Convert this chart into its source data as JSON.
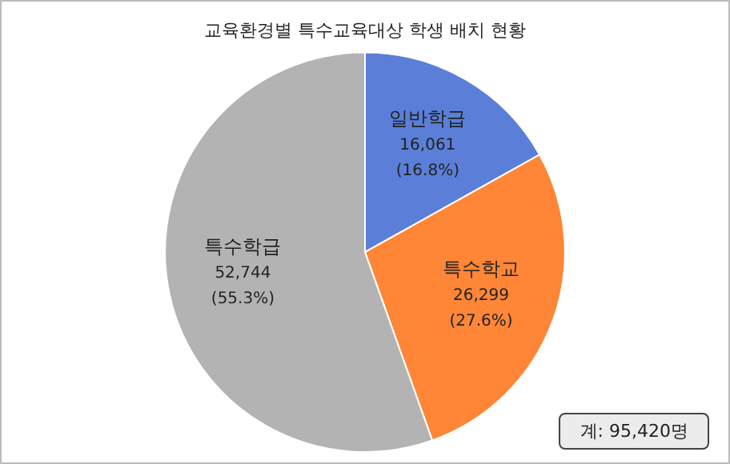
{
  "chart_data": {
    "type": "pie",
    "title": "교육환경별 특수교육대상 학생 배치 현황",
    "categories": [
      "일반학급",
      "특수학교",
      "특수학급"
    ],
    "values": [
      16061,
      26299,
      52744
    ],
    "colors": [
      "#5b7fd8",
      "#fe8636",
      "#b3b3b3"
    ],
    "value_labels": [
      "16,061 (16.8%)",
      "26,299 (27.6%)",
      "52,744 (55.3%)"
    ],
    "annotations": [
      "계: 95,420명"
    ],
    "legend": false
  }
}
